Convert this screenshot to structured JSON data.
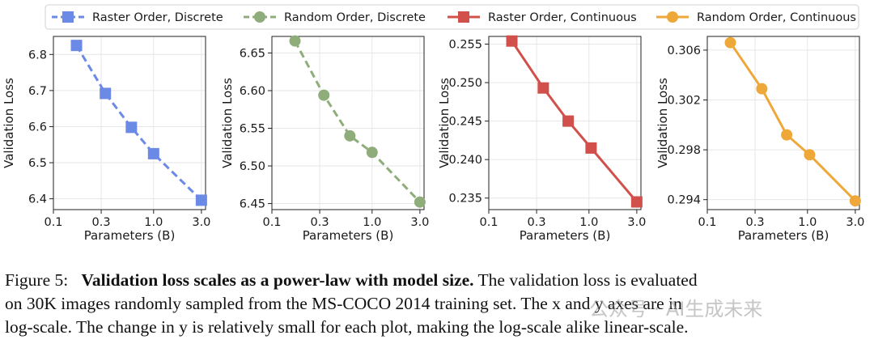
{
  "legend": [
    {
      "label": "Raster Order, Discrete",
      "color": "#6b8ae6",
      "marker": "square",
      "dash": true
    },
    {
      "label": "Random Order, Discrete",
      "color": "#8fad7a",
      "marker": "circle",
      "dash": true
    },
    {
      "label": "Raster Order, Continuous",
      "color": "#d1504b",
      "marker": "square",
      "dash": false
    },
    {
      "label": "Random Order, Continuous",
      "color": "#eea83a",
      "marker": "circle",
      "dash": false
    }
  ],
  "chart_data": [
    {
      "type": "line",
      "series_name": "Raster Order, Discrete",
      "xscale": "log",
      "xlim": [
        0.1,
        3.3
      ],
      "ylim": [
        6.37,
        6.85
      ],
      "x": [
        0.17,
        0.33,
        0.6,
        1.0,
        3.0
      ],
      "y": [
        6.825,
        6.692,
        6.598,
        6.525,
        6.396
      ],
      "yticks": [
        6.4,
        6.5,
        6.6,
        6.7,
        6.8
      ],
      "ytick_labels": [
        "6.4",
        "6.5",
        "6.6",
        "6.7",
        "6.8"
      ],
      "xticks": [
        0.1,
        0.3,
        1.0,
        3.0
      ],
      "xtick_labels": [
        "0.1",
        "0.3",
        "1.0",
        "3.0"
      ],
      "xlabel": "Parameters (B)",
      "ylabel": "Validation Loss"
    },
    {
      "type": "line",
      "series_name": "Random Order, Discrete",
      "xscale": "log",
      "xlim": [
        0.1,
        3.3
      ],
      "ylim": [
        6.442,
        6.672
      ],
      "x": [
        0.17,
        0.33,
        0.6,
        1.0,
        3.0
      ],
      "y": [
        6.666,
        6.594,
        6.54,
        6.518,
        6.452
      ],
      "yticks": [
        6.45,
        6.5,
        6.55,
        6.6,
        6.65
      ],
      "ytick_labels": [
        "6.45",
        "6.50",
        "6.55",
        "6.60",
        "6.65"
      ],
      "xticks": [
        0.1,
        0.3,
        1.0,
        3.0
      ],
      "xtick_labels": [
        "0.1",
        "0.3",
        "1.0",
        "3.0"
      ],
      "xlabel": "Parameters (B)",
      "ylabel": "Validation Loss"
    },
    {
      "type": "line",
      "series_name": "Raster Order, Continuous",
      "xscale": "log",
      "xlim": [
        0.1,
        3.3
      ],
      "ylim": [
        0.2335,
        0.256
      ],
      "x": [
        0.17,
        0.35,
        0.62,
        1.05,
        3.0
      ],
      "y": [
        0.2554,
        0.2493,
        0.245,
        0.2415,
        0.2345
      ],
      "yticks": [
        0.235,
        0.24,
        0.245,
        0.25,
        0.255
      ],
      "ytick_labels": [
        "0.235",
        "0.240",
        "0.245",
        "0.250",
        "0.255"
      ],
      "xticks": [
        0.1,
        0.3,
        1.0,
        3.0
      ],
      "xtick_labels": [
        "0.1",
        "0.3",
        "1.0",
        "3.0"
      ],
      "xlabel": "Parameters (B)",
      "ylabel": "Validation Loss"
    },
    {
      "type": "line",
      "series_name": "Random Order, Continuous",
      "xscale": "log",
      "xlim": [
        0.1,
        3.3
      ],
      "ylim": [
        0.2932,
        0.3071
      ],
      "x": [
        0.17,
        0.35,
        0.62,
        1.05,
        3.0
      ],
      "y": [
        0.3066,
        0.3029,
        0.2992,
        0.2976,
        0.2939
      ],
      "yticks": [
        0.294,
        0.298,
        0.302,
        0.306
      ],
      "ytick_labels": [
        "0.294",
        "0.298",
        "0.302",
        "0.306"
      ],
      "xticks": [
        0.1,
        0.3,
        1.0,
        3.0
      ],
      "xtick_labels": [
        "0.1",
        "0.3",
        "1.0",
        "3.0"
      ],
      "xlabel": "Parameters (B)",
      "ylabel": "Validation Loss"
    }
  ],
  "caption": {
    "prefix": "Figure 5:",
    "bold": "Validation loss scales as a power-law with model size.",
    "line1_rest": "The validation loss is evaluated",
    "line2": "on 30K images randomly sampled from the MS-COCO 2014 training set. The x and y axes are in",
    "line3": "log-scale. The change in y is relatively small for each plot, making the log-scale alike linear-scale."
  },
  "watermark": "公众号 · AI生成未来"
}
